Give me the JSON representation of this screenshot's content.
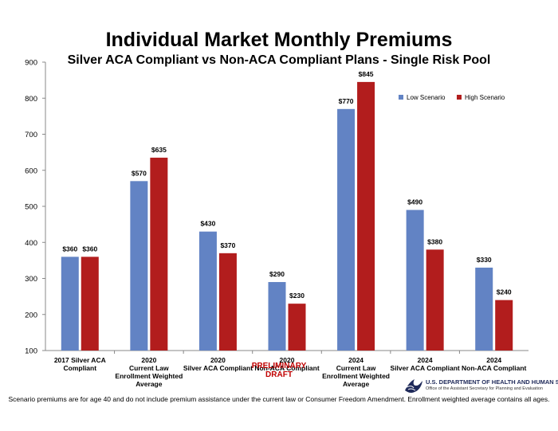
{
  "chart_data": {
    "type": "bar",
    "title": "Individual Market Monthly Premiums",
    "subtitle": "Silver ACA Compliant vs Non-ACA Compliant Plans - Single Risk Pool",
    "categories": [
      [
        "2017 Silver ACA",
        "Compliant"
      ],
      [
        "2020",
        "Current Law",
        "Enrollment Weighted",
        "Average"
      ],
      [
        "2020",
        "Silver ACA Compliant"
      ],
      [
        "2020",
        "Non-ACA Compliant"
      ],
      [
        "2024",
        "Current Law",
        "Enrollment Weighted",
        "Average"
      ],
      [
        "2024",
        "Silver ACA Compliant"
      ],
      [
        "2024",
        "Non-ACA Compliant"
      ]
    ],
    "series": [
      {
        "name": "Low Scenario",
        "color": "#6283c4",
        "values": [
          360,
          570,
          430,
          290,
          770,
          490,
          330
        ],
        "labels": [
          "$360",
          "$570",
          "$430",
          "$290",
          "$770",
          "$490",
          "$330"
        ]
      },
      {
        "name": "High Scenario",
        "color": "#b21d1d",
        "values": [
          360,
          635,
          370,
          230,
          845,
          380,
          240
        ],
        "labels": [
          "$360",
          "$635",
          "$370",
          "$230",
          "$845",
          "$380",
          "$240"
        ]
      }
    ],
    "ylim": [
      100,
      900
    ],
    "yticks": [
      "100",
      "200",
      "300",
      "400",
      "500",
      "600",
      "700",
      "800",
      "900"
    ],
    "grid": false,
    "legend_position": "top-right"
  },
  "draft_label": "PRELIMINARY DRAFT",
  "agency": {
    "name": "U.S. DEPARTMENT OF HEALTH AND HUMAN SERVICES",
    "office": "Office of the Assistant Secretary for Planning and Evaluation",
    "logo_icon": "hhs-eagle-icon"
  },
  "footnote": "Scenario premiums are for age 40 and do not include premium assistance under the current law or Consumer Freedom Amendment. Enrollment weighted average contains all ages."
}
